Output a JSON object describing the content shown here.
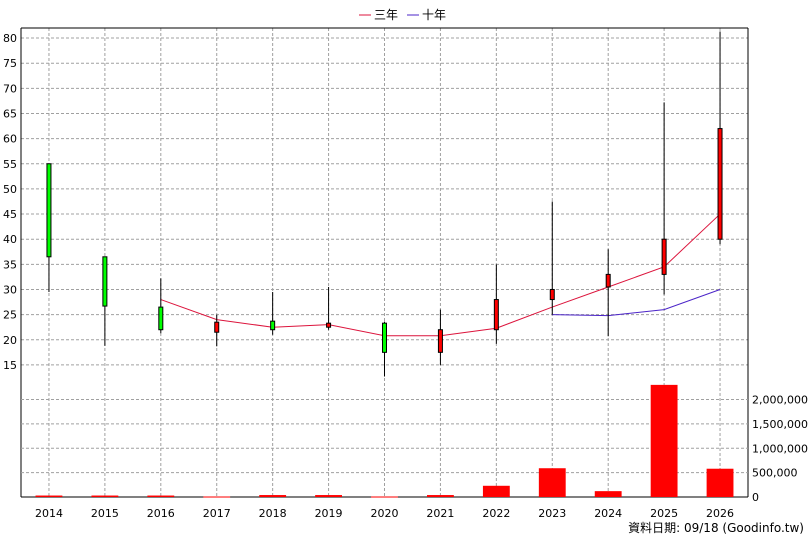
{
  "chart_data": {
    "type": "candlestick",
    "categories": [
      "2014",
      "2015",
      "2016",
      "2017",
      "2018",
      "2019",
      "2020",
      "2021",
      "2022",
      "2023",
      "2024",
      "2025",
      "2026"
    ],
    "candles": [
      {
        "open": 55.0,
        "close": 36.5,
        "high": 55.0,
        "low": 29.5
      },
      {
        "open": 36.5,
        "close": 26.7,
        "high": 36.5,
        "low": 18.8
      },
      {
        "open": 26.5,
        "close": 22.0,
        "high": 32.2,
        "low": 21.3
      },
      {
        "open": 21.5,
        "close": 23.5,
        "high": 25.0,
        "low": 18.7
      },
      {
        "open": 23.7,
        "close": 22.0,
        "high": 29.5,
        "low": 21.0
      },
      {
        "open": 22.5,
        "close": 23.3,
        "high": 30.5,
        "low": 22.0
      },
      {
        "open": 23.3,
        "close": 17.5,
        "high": 23.6,
        "low": 12.7
      },
      {
        "open": 17.5,
        "close": 22.0,
        "high": 26.0,
        "low": 15.0
      },
      {
        "open": 22.0,
        "close": 28.0,
        "high": 35.0,
        "low": 19.2
      },
      {
        "open": 28.0,
        "close": 30.0,
        "high": 47.5,
        "low": 25.0
      },
      {
        "open": 30.5,
        "close": 33.0,
        "high": 38.0,
        "low": 20.7
      },
      {
        "open": 33.0,
        "close": 40.0,
        "high": 67.2,
        "low": 29.0
      },
      {
        "open": 40.0,
        "close": 62.0,
        "high": 81.3,
        "low": 39.0
      }
    ],
    "series": [
      {
        "name": "三年",
        "color": "#dc143c",
        "values": [
          null,
          null,
          28.0,
          24.0,
          22.5,
          23.0,
          20.8,
          20.8,
          22.3,
          26.5,
          30.5,
          34.5,
          45.0
        ]
      },
      {
        "name": "十年",
        "color": "#4b24c8",
        "values": [
          null,
          null,
          null,
          null,
          null,
          null,
          null,
          null,
          null,
          25.0,
          24.8,
          26.0,
          30.0
        ]
      }
    ],
    "volume": [
      30000,
      30000,
      30000,
      10000,
      40000,
      40000,
      10000,
      40000,
      230000,
      590000,
      120000,
      2300000,
      580000
    ],
    "price_axis": {
      "min": 12,
      "max": 82,
      "ticks": [
        15,
        20,
        25,
        30,
        35,
        40,
        45,
        50,
        55,
        60,
        65,
        70,
        75,
        80
      ]
    },
    "volume_axis": {
      "min": 0,
      "max": 2400000,
      "ticks": [
        0,
        500000,
        1000000,
        1500000,
        2000000
      ],
      "tick_labels": [
        "0",
        "500,000",
        "1,000,000",
        "1,500,000",
        "2,000,000"
      ]
    },
    "grid": true,
    "legend_position": "top-center",
    "colors": {
      "up": "#ff0000",
      "down": "#00ff00",
      "volume": "#ff0000",
      "grid": "#a0a0a0",
      "axis": "#000000"
    }
  },
  "source_note": "資料日期: 09/18 (Goodinfo.tw)"
}
